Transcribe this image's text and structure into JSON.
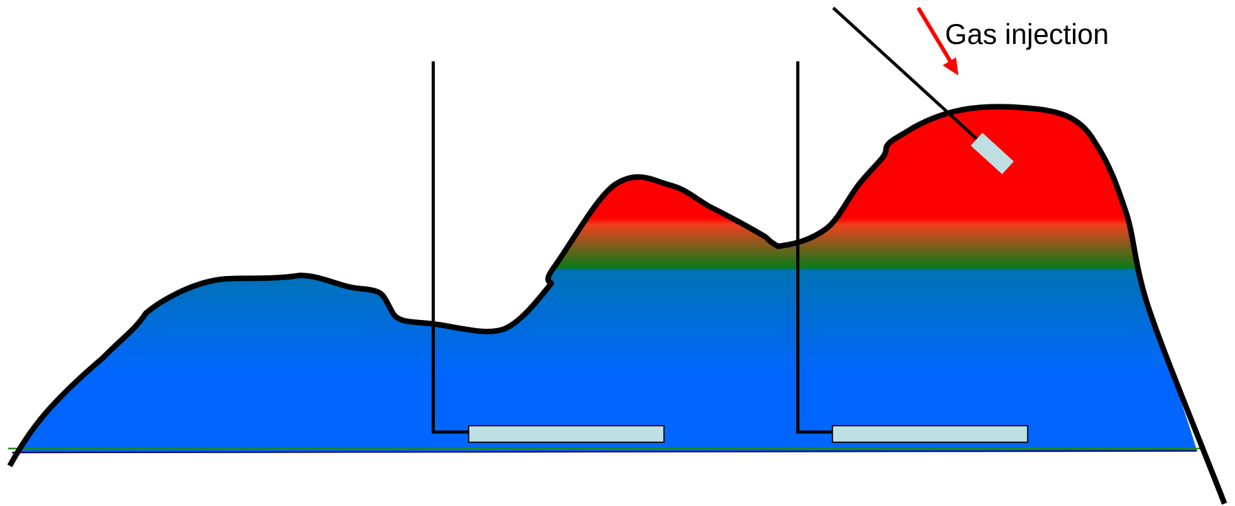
{
  "annotation": {
    "text": "Gas injection"
  }
}
